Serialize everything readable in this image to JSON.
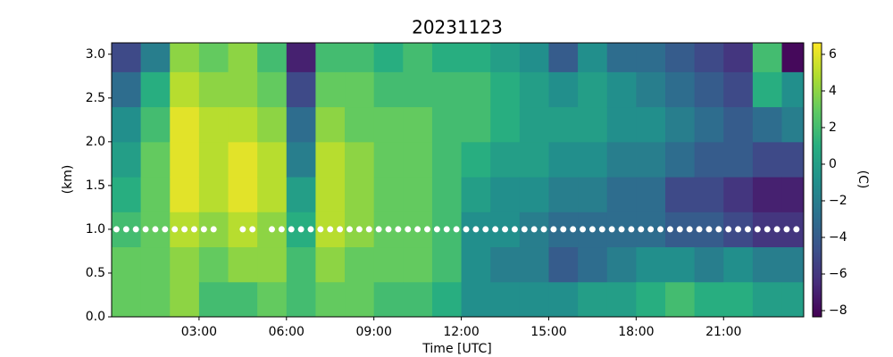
{
  "chart_data": {
    "type": "heatmap",
    "title": "20231123",
    "xlabel": "Time [UTC]",
    "ylabel": "(km)",
    "colorbar_label": "(C)",
    "colormap": "viridis",
    "x_edges": [
      0,
      60,
      120,
      180,
      240,
      300,
      360,
      420,
      480,
      540,
      600,
      660,
      720,
      780,
      840,
      900,
      960,
      1020,
      1080,
      1140,
      1200,
      1260,
      1320,
      1380,
      1425
    ],
    "y_edges": [
      0,
      0.4,
      0.8,
      1.2,
      1.6,
      2.0,
      2.4,
      2.8,
      3.13
    ],
    "z": [
      [
        3,
        3,
        2,
        1,
        0,
        -1,
        -3,
        -5
      ],
      [
        3,
        3,
        3,
        3,
        3,
        2,
        1,
        -2
      ],
      [
        4,
        4,
        5,
        6,
        6,
        6,
        5,
        4
      ],
      [
        2,
        3,
        4,
        5,
        5,
        5,
        4,
        3
      ],
      [
        2,
        4,
        5,
        6,
        6,
        5,
        4,
        4
      ],
      [
        3,
        4,
        4,
        5,
        5,
        4,
        3,
        2
      ],
      [
        2,
        2,
        1,
        0,
        -2,
        -3,
        -5,
        -7
      ],
      [
        3,
        4,
        5,
        5,
        5,
        4,
        3,
        2
      ],
      [
        3,
        3,
        4,
        4,
        4,
        3,
        3,
        2
      ],
      [
        2,
        3,
        3,
        3,
        3,
        3,
        2,
        1
      ],
      [
        2,
        3,
        3,
        3,
        3,
        3,
        2,
        2
      ],
      [
        1,
        2,
        2,
        2,
        2,
        2,
        2,
        1
      ],
      [
        -1,
        -1,
        -1,
        0,
        1,
        2,
        2,
        1
      ],
      [
        -1,
        -2,
        -1,
        -1,
        0,
        1,
        1,
        0
      ],
      [
        -1,
        -2,
        -2,
        -1,
        0,
        0,
        0,
        -1
      ],
      [
        -1,
        -4,
        -3,
        -2,
        -1,
        0,
        -1,
        -4
      ],
      [
        0,
        -3,
        -3,
        -2,
        -1,
        0,
        0,
        -1
      ],
      [
        0,
        -2,
        -3,
        -3,
        -2,
        -1,
        -1,
        -3
      ],
      [
        1,
        -1,
        -3,
        -3,
        -2,
        -1,
        -2,
        -3
      ],
      [
        2,
        -1,
        -4,
        -5,
        -3,
        -2,
        -3,
        -4
      ],
      [
        1,
        -2,
        -4,
        -5,
        -4,
        -3,
        -4,
        -5
      ],
      [
        1,
        -1,
        -5,
        -6,
        -4,
        -4,
        -5,
        -6
      ],
      [
        0,
        -2,
        -6,
        -7,
        -5,
        -3,
        1,
        2
      ],
      [
        0,
        -2,
        -6,
        -7,
        -5,
        -2,
        -1,
        -8
      ]
    ],
    "clim": [
      -8.34,
      6.63
    ],
    "cticks": [
      {
        "value": -8,
        "label": "−8"
      },
      {
        "value": -6,
        "label": "−6"
      },
      {
        "value": -4,
        "label": "−4"
      },
      {
        "value": -2,
        "label": "−2"
      },
      0,
      2,
      4,
      6
    ],
    "dots": {
      "color": "#ffffff",
      "y": 1.0,
      "x": [
        10,
        30,
        50,
        70,
        90,
        110,
        130,
        150,
        170,
        190,
        210,
        270,
        290,
        330,
        350,
        370,
        390,
        410,
        430,
        450,
        470,
        490,
        510,
        530,
        550,
        570,
        590,
        610,
        630,
        650,
        670,
        690,
        710,
        730,
        750,
        770,
        790,
        810,
        830,
        850,
        870,
        890,
        910,
        930,
        950,
        970,
        990,
        1010,
        1030,
        1050,
        1070,
        1090,
        1110,
        1130,
        1150,
        1170,
        1190,
        1210,
        1230,
        1250,
        1270,
        1290,
        1310,
        1330,
        1350,
        1370,
        1390,
        1410
      ]
    },
    "xlim": [
      0,
      1425
    ],
    "ylim": [
      0,
      3.13
    ],
    "xticks": [
      {
        "value": 180,
        "label": "03:00"
      },
      {
        "value": 360,
        "label": "06:00"
      },
      {
        "value": 540,
        "label": "09:00"
      },
      {
        "value": 720,
        "label": "12:00"
      },
      {
        "value": 900,
        "label": "15:00"
      },
      {
        "value": 1080,
        "label": "18:00"
      },
      {
        "value": 1260,
        "label": "21:00"
      }
    ],
    "yticks": [
      {
        "value": 0,
        "label": "0.0"
      },
      0.5,
      {
        "value": 1,
        "label": "1.0"
      },
      1.5,
      {
        "value": 2,
        "label": "2.0"
      },
      2.5,
      {
        "value": 3,
        "label": "3.0"
      }
    ]
  }
}
